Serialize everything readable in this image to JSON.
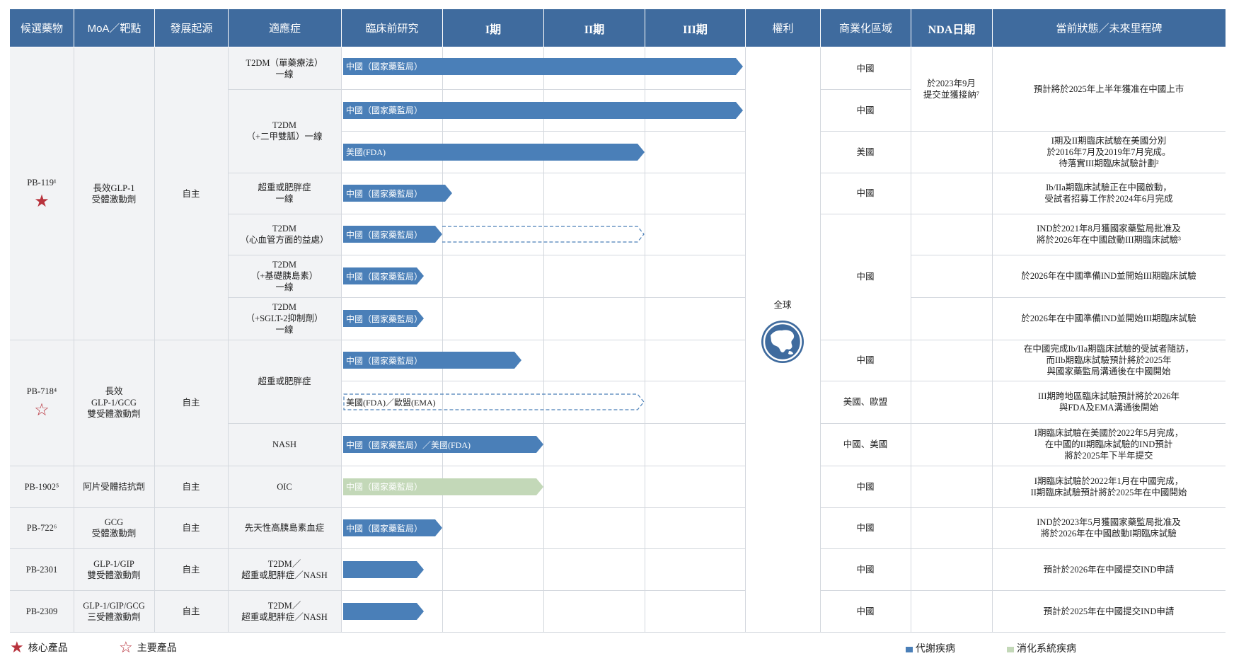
{
  "colors": {
    "header_bg": "#3f6b9e",
    "metabolic": "#4a7fb8",
    "digestive": "#c3d8b8",
    "star": "#b8323c",
    "grey_col": "#f2f3f5"
  },
  "headers": [
    "候選藥物",
    "MoA／靶點",
    "發展起源",
    "適應症",
    "臨床前研究",
    "I期",
    "II期",
    "III期",
    "權利",
    "商業化區域",
    "NDA日期",
    "當前狀態／未來里程碑"
  ],
  "rights": {
    "label": "全球",
    "icon": "globe-icon"
  },
  "nda": {
    "text": "於2023年9月\n提交並獲接納⁷"
  },
  "rows": [
    {
      "indication": "T2DM（單藥療法）\n一線",
      "progress": 4.0,
      "bar": "solid",
      "color": "metabolic",
      "label": "中國（國家藥監局）",
      "region": "中國",
      "status": "預計將於2025年上半年獲准在中國上市"
    },
    {
      "indication": "T2DM\n（+二甲雙胍）一線",
      "progress": 4.0,
      "bar": "solid",
      "color": "metabolic",
      "label": "中國（國家藥監局）",
      "region": "中國",
      "status": ""
    },
    {
      "indication": "",
      "progress": 3.0,
      "bar": "solid",
      "color": "metabolic",
      "label": "美國(FDA)",
      "region": "美國",
      "status": "I期及II期臨床試驗在美國分別\n於2016年7月及2019年7月完成。\n待落實III期臨床試驗計劃²"
    },
    {
      "indication": "超重或肥胖症\n一線",
      "progress": 1.1,
      "bar": "solid",
      "color": "metabolic",
      "label": "中國（國家藥監局）",
      "region": "中國",
      "status": "Ib/IIa期臨床試驗正在中國啟動，\n受試者招募工作於2024年6月完成"
    },
    {
      "indication": "T2DM\n（心血管方面的益處）",
      "progress": 1.0,
      "dash_to": 3.0,
      "bar": "solid",
      "color": "metabolic",
      "label": "中國（國家藥監局）",
      "region": "中國",
      "status": "IND於2021年8月獲國家藥監局批准及\n將於2026年在中國啟動III期臨床試驗³"
    },
    {
      "indication": "T2DM\n（+基礎胰島素）\n一線",
      "progress": 0.82,
      "bar": "solid",
      "color": "metabolic",
      "label": "中國（國家藥監局）",
      "region": "",
      "status": "於2026年在中國準備IND並開始III期臨床試驗"
    },
    {
      "indication": "T2DM\n（+SGLT-2抑制劑）\n一線",
      "progress": 0.82,
      "bar": "solid",
      "color": "metabolic",
      "label": "中國（國家藥監局）",
      "region": "",
      "status": "於2026年在中國準備IND並開始III期臨床試驗"
    },
    {
      "indication": "超重或肥胖症",
      "progress": 1.78,
      "bar": "solid",
      "color": "metabolic",
      "label": "中國（國家藥監局）",
      "region": "中國",
      "status": "在中國完成Ib/IIa期臨床試驗的受試者隨訪，\n而IIb期臨床試驗預計將於2025年\n與國家藥監局溝通後在中國開始"
    },
    {
      "indication": "",
      "progress": 3.0,
      "bar": "dashed",
      "color": "metabolic",
      "label": "美國(FDA)／歐盟(EMA)",
      "region": "美國、歐盟",
      "status": "III期跨地區臨床試驗預計將於2026年\n與FDA及EMA溝通後開始"
    },
    {
      "indication": "NASH",
      "progress": 2.0,
      "bar": "solid",
      "color": "metabolic",
      "label": "中國（國家藥監局）／美國(FDA)",
      "region": "中國、美國",
      "status": "I期臨床試驗在美國於2022年5月完成，\n在中國的II期臨床試驗的IND預計\n將於2025年下半年提交"
    },
    {
      "indication": "OIC",
      "progress": 2.0,
      "bar": "solid",
      "color": "digestive",
      "label": "中國（國家藥監局）",
      "region": "中國",
      "status": "I期臨床試驗於2022年1月在中國完成，\nII期臨床試驗預計將於2025年在中國開始"
    },
    {
      "indication": "先天性高胰島素血症",
      "progress": 1.0,
      "bar": "solid",
      "color": "metabolic",
      "label": "中國（國家藥監局）",
      "region": "中國",
      "status": "IND於2023年5月獲國家藥監局批准及\n將於2026年在中國啟動I期臨床試驗"
    },
    {
      "indication": "T2DM／\n超重或肥胖症／NASH",
      "progress": 0.82,
      "bar": "solid",
      "color": "metabolic",
      "label": "",
      "region": "中國",
      "status": "預計於2026年在中國提交IND申請"
    },
    {
      "indication": "T2DM／\n超重或肥胖症／NASH",
      "progress": 0.82,
      "bar": "solid",
      "color": "metabolic",
      "label": "",
      "region": "中國",
      "status": "預計於2025年在中國提交IND申請"
    }
  ],
  "drugs": [
    {
      "name": "PB-119¹",
      "moa": "長效GLP-1\n受體激動劑",
      "origin": "自主",
      "marker": "filled-star"
    },
    {
      "name": "PB-718⁴",
      "moa": "長效\nGLP-1/GCG\n雙受體激動劑",
      "origin": "自主",
      "marker": "outline-star"
    },
    {
      "name": "PB-1902⁵",
      "moa": "阿片受體拮抗劑",
      "origin": "自主",
      "marker": ""
    },
    {
      "name": "PB-722⁶",
      "moa": "GCG\n受體激動劑",
      "origin": "自主",
      "marker": ""
    },
    {
      "name": "PB-2301",
      "moa": "GLP-1/GIP\n雙受體激動劑",
      "origin": "自主",
      "marker": ""
    },
    {
      "name": "PB-2309",
      "moa": "GLP-1/GIP/GCG\n三受體激動劑",
      "origin": "自主",
      "marker": ""
    }
  ],
  "legend": {
    "core": "核心產品",
    "major": "主要產品",
    "metabolic": "代謝疾病",
    "digestive": "消化系統疾病"
  }
}
